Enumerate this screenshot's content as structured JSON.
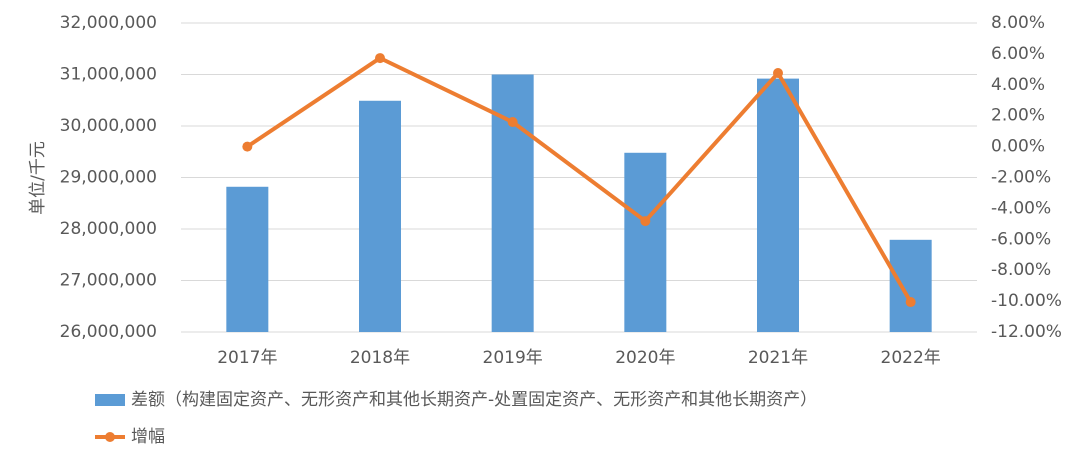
{
  "chart_data": {
    "type": "bar_line",
    "y_axis_title": "单位/千元",
    "categories": [
      "2017年",
      "2018年",
      "2019年",
      "2020年",
      "2021年",
      "2022年"
    ],
    "series": [
      {
        "name": "差额（构建固定资产、无形资产和其他长期资产-处置固定资产、无形资产和其他长期资产）",
        "type": "bar",
        "color": "#5b9bd5",
        "axis": "y",
        "values": [
          28820000,
          30490000,
          31000000,
          29480000,
          30920000,
          27790000
        ]
      },
      {
        "name": "增幅",
        "type": "line",
        "color": "#ed7d31",
        "axis": "y2",
        "values": [
          0.0,
          5.73,
          1.59,
          -4.82,
          4.76,
          -10.06
        ]
      }
    ],
    "ylim": [
      26000000,
      32000000
    ],
    "yticks": [
      {
        "value": 26000000,
        "label": "26,000,000"
      },
      {
        "value": 27000000,
        "label": "27,000,000"
      },
      {
        "value": 28000000,
        "label": "28,000,000"
      },
      {
        "value": 29000000,
        "label": "29,000,000"
      },
      {
        "value": 30000000,
        "label": "30,000,000"
      },
      {
        "value": 31000000,
        "label": "31,000,000"
      },
      {
        "value": 32000000,
        "label": "32,000,000"
      }
    ],
    "y2lim": [
      -12,
      8
    ],
    "y2ticks": [
      {
        "value": -12,
        "label": "-12.00%"
      },
      {
        "value": -10,
        "label": "-10.00%"
      },
      {
        "value": -8,
        "label": "-8.00%"
      },
      {
        "value": -6,
        "label": "-6.00%"
      },
      {
        "value": -4,
        "label": "-4.00%"
      },
      {
        "value": -2,
        "label": "-2.00%"
      },
      {
        "value": 0,
        "label": "0.00%"
      },
      {
        "value": 2,
        "label": "2.00%"
      },
      {
        "value": 4,
        "label": "4.00%"
      },
      {
        "value": 6,
        "label": "6.00%"
      },
      {
        "value": 8,
        "label": "8.00%"
      }
    ],
    "grid": true,
    "legend": "bottom"
  }
}
